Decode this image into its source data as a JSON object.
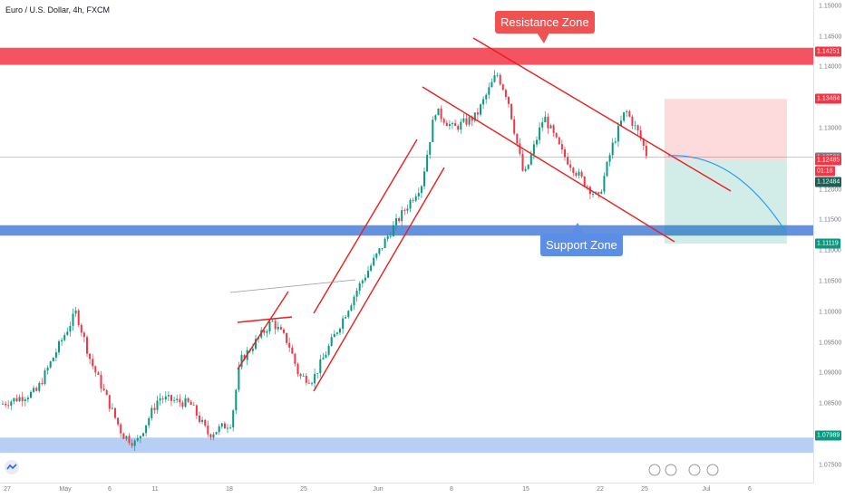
{
  "title": "Euro / U.S. Dollar, 4h, FXCM",
  "chart_data": {
    "type": "candlestick",
    "title": "Euro / U.S. Dollar, 4h, FXCM",
    "y_ticks": [
      "1.15000",
      "1.14500",
      "1.14000",
      "1.13500",
      "1.13000",
      "1.12500",
      "1.12000",
      "1.11500",
      "1.11000",
      "1.10500",
      "1.10000",
      "1.09500",
      "1.09000",
      "1.08500",
      "1.08000",
      "1.07500"
    ],
    "x_ticks": [
      "27",
      "May",
      "6",
      "11",
      "18",
      "25",
      "Jun",
      "8",
      "15",
      "22",
      "25",
      "Jul",
      "6"
    ],
    "ylim": [
      1.072,
      1.151
    ],
    "price_labels": [
      {
        "label": "1.14251",
        "value": 1.14251,
        "color": "#f23645"
      },
      {
        "label": "1.13484",
        "value": 1.13484,
        "color": "#f23645"
      },
      {
        "label": "1.12533",
        "value": 1.12533,
        "color": "#787b86"
      },
      {
        "label": "1.12485",
        "value": 1.12485,
        "color": "#f23645"
      },
      {
        "label": "01:18",
        "value": 1.1231,
        "color": "#f23645"
      },
      {
        "label": "1.12484",
        "value": 1.12125,
        "color": "#1b5e56"
      },
      {
        "label": "1.11119",
        "value": 1.11119,
        "color": "#089981"
      },
      {
        "label": "1.07989",
        "value": 1.07989,
        "color": "#089981"
      }
    ],
    "zones": [
      {
        "name": "Resistance Zone",
        "from": 1.1404,
        "to": 1.1432,
        "color": "#f23645"
      },
      {
        "name": "Support Zone",
        "from": 1.1125,
        "to": 1.1142,
        "color": "#4a7fd8"
      },
      {
        "name": "Support",
        "from": 1.077,
        "to": 1.0795,
        "color": "#9fbff0"
      }
    ],
    "annotations": [
      {
        "text": "Resistance Zone",
        "color": "#f05252"
      },
      {
        "text": "Support Zone",
        "color": "#5b8ee6"
      }
    ],
    "candle_colors": {
      "up": "#089981",
      "down": "#f23645"
    }
  }
}
